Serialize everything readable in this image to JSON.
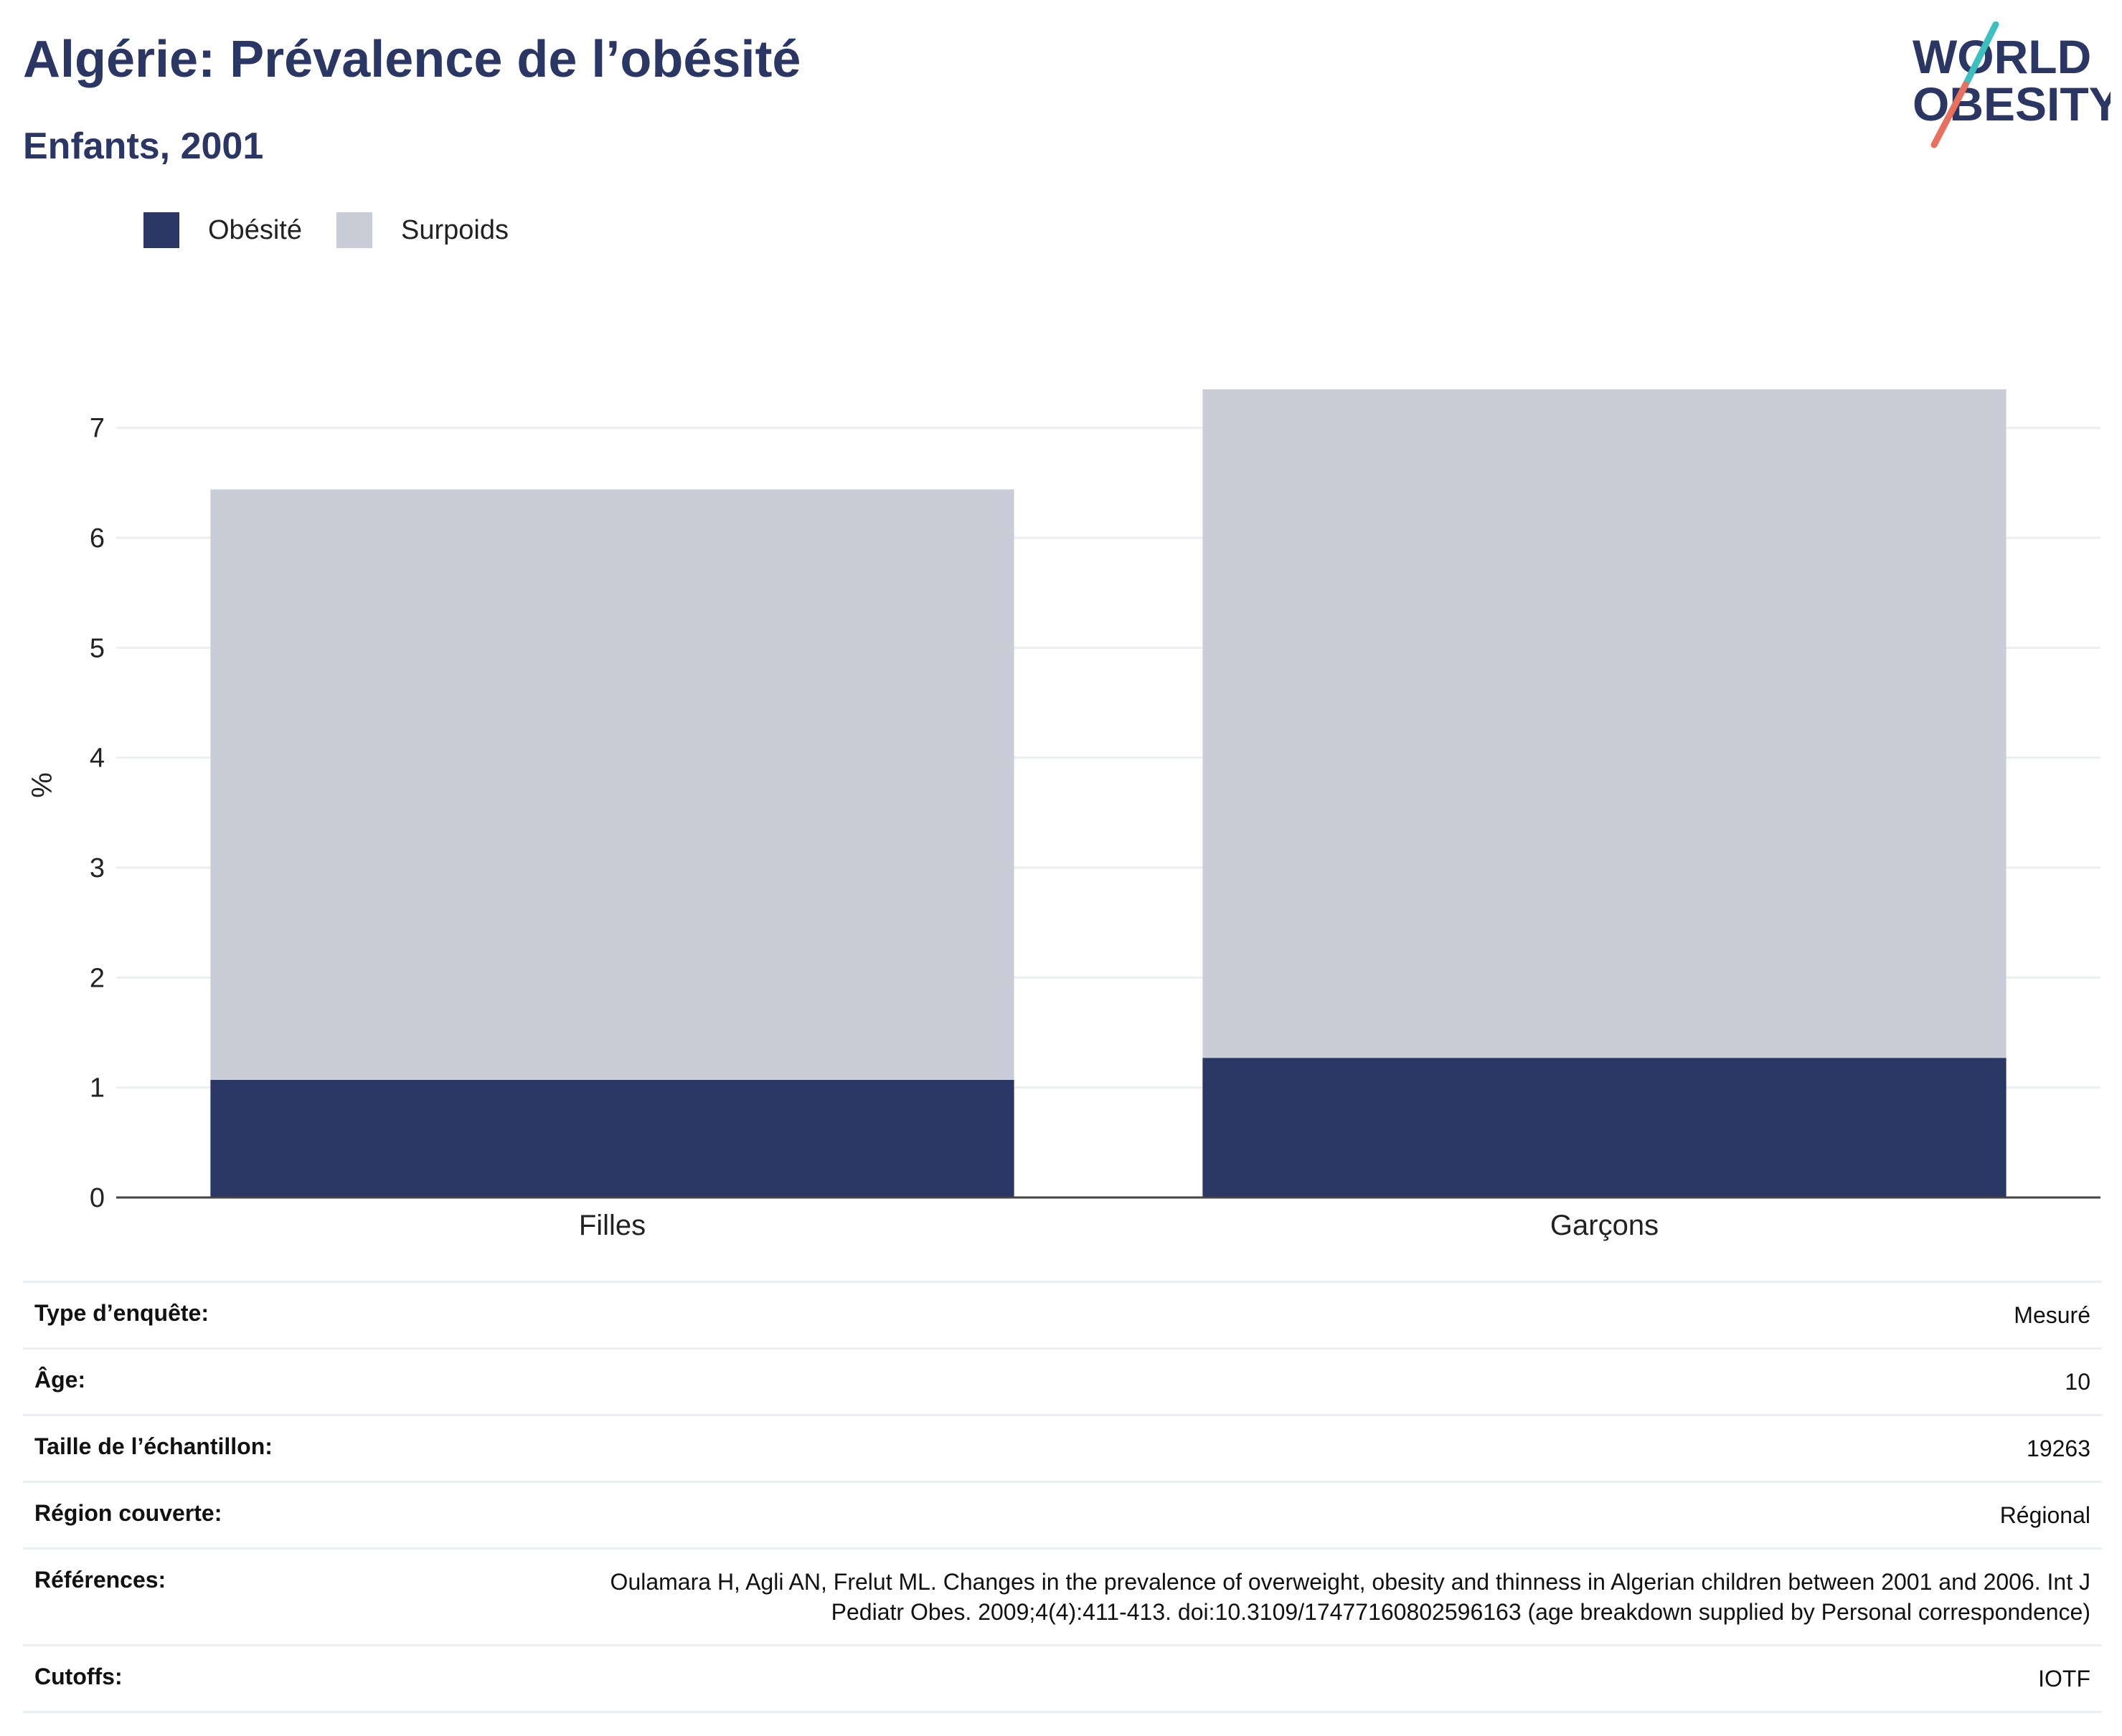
{
  "header": {
    "title": "Algérie: Prévalence de l’obésité",
    "subtitle": "Enfants, 2001",
    "logo_line1": "WORLD",
    "logo_line2": "OBESITY"
  },
  "colors": {
    "obesity": "#2a3663",
    "overweight": "#cacdd8",
    "text": "#2a3663",
    "logo_teal": "#3ebfbf",
    "logo_red": "#e8705c"
  },
  "legend": {
    "placement": "top-left",
    "items": [
      {
        "label": "Obésité",
        "color": "#2a3663"
      },
      {
        "label": "Surpoids",
        "color": "#cacdd8"
      }
    ]
  },
  "chart_data": {
    "type": "bar",
    "stacked": true,
    "categories": [
      "Filles",
      "Garçons"
    ],
    "series": [
      {
        "name": "Obésité",
        "values": [
          1.07,
          1.27
        ]
      },
      {
        "name": "Surpoids",
        "values": [
          5.37,
          6.08
        ]
      }
    ],
    "title": "Algérie: Prévalence de l’obésité",
    "subtitle": "Enfants, 2001",
    "xlabel": "",
    "ylabel": "%",
    "ylim": [
      0,
      7.5
    ],
    "yticks": [
      0,
      1,
      2,
      3,
      4,
      5,
      6,
      7
    ],
    "grid": true
  },
  "info": [
    {
      "label": "Type d’enquête:",
      "value": "Mesuré"
    },
    {
      "label": "Âge:",
      "value": "10"
    },
    {
      "label": "Taille de l’échantillon:",
      "value": "19263"
    },
    {
      "label": "Région couverte:",
      "value": "Régional"
    },
    {
      "label": "Références:",
      "value": "Oulamara H, Agli AN, Frelut ML. Changes in the prevalence of overweight, obesity and thinness in Algerian children between 2001 and 2006. Int J Pediatr Obes. 2009;4(4):411-413. doi:10.3109/17477160802596163 (age breakdown supplied by Personal correspondence)"
    },
    {
      "label": "Cutoffs:",
      "value": "IOTF"
    }
  ]
}
